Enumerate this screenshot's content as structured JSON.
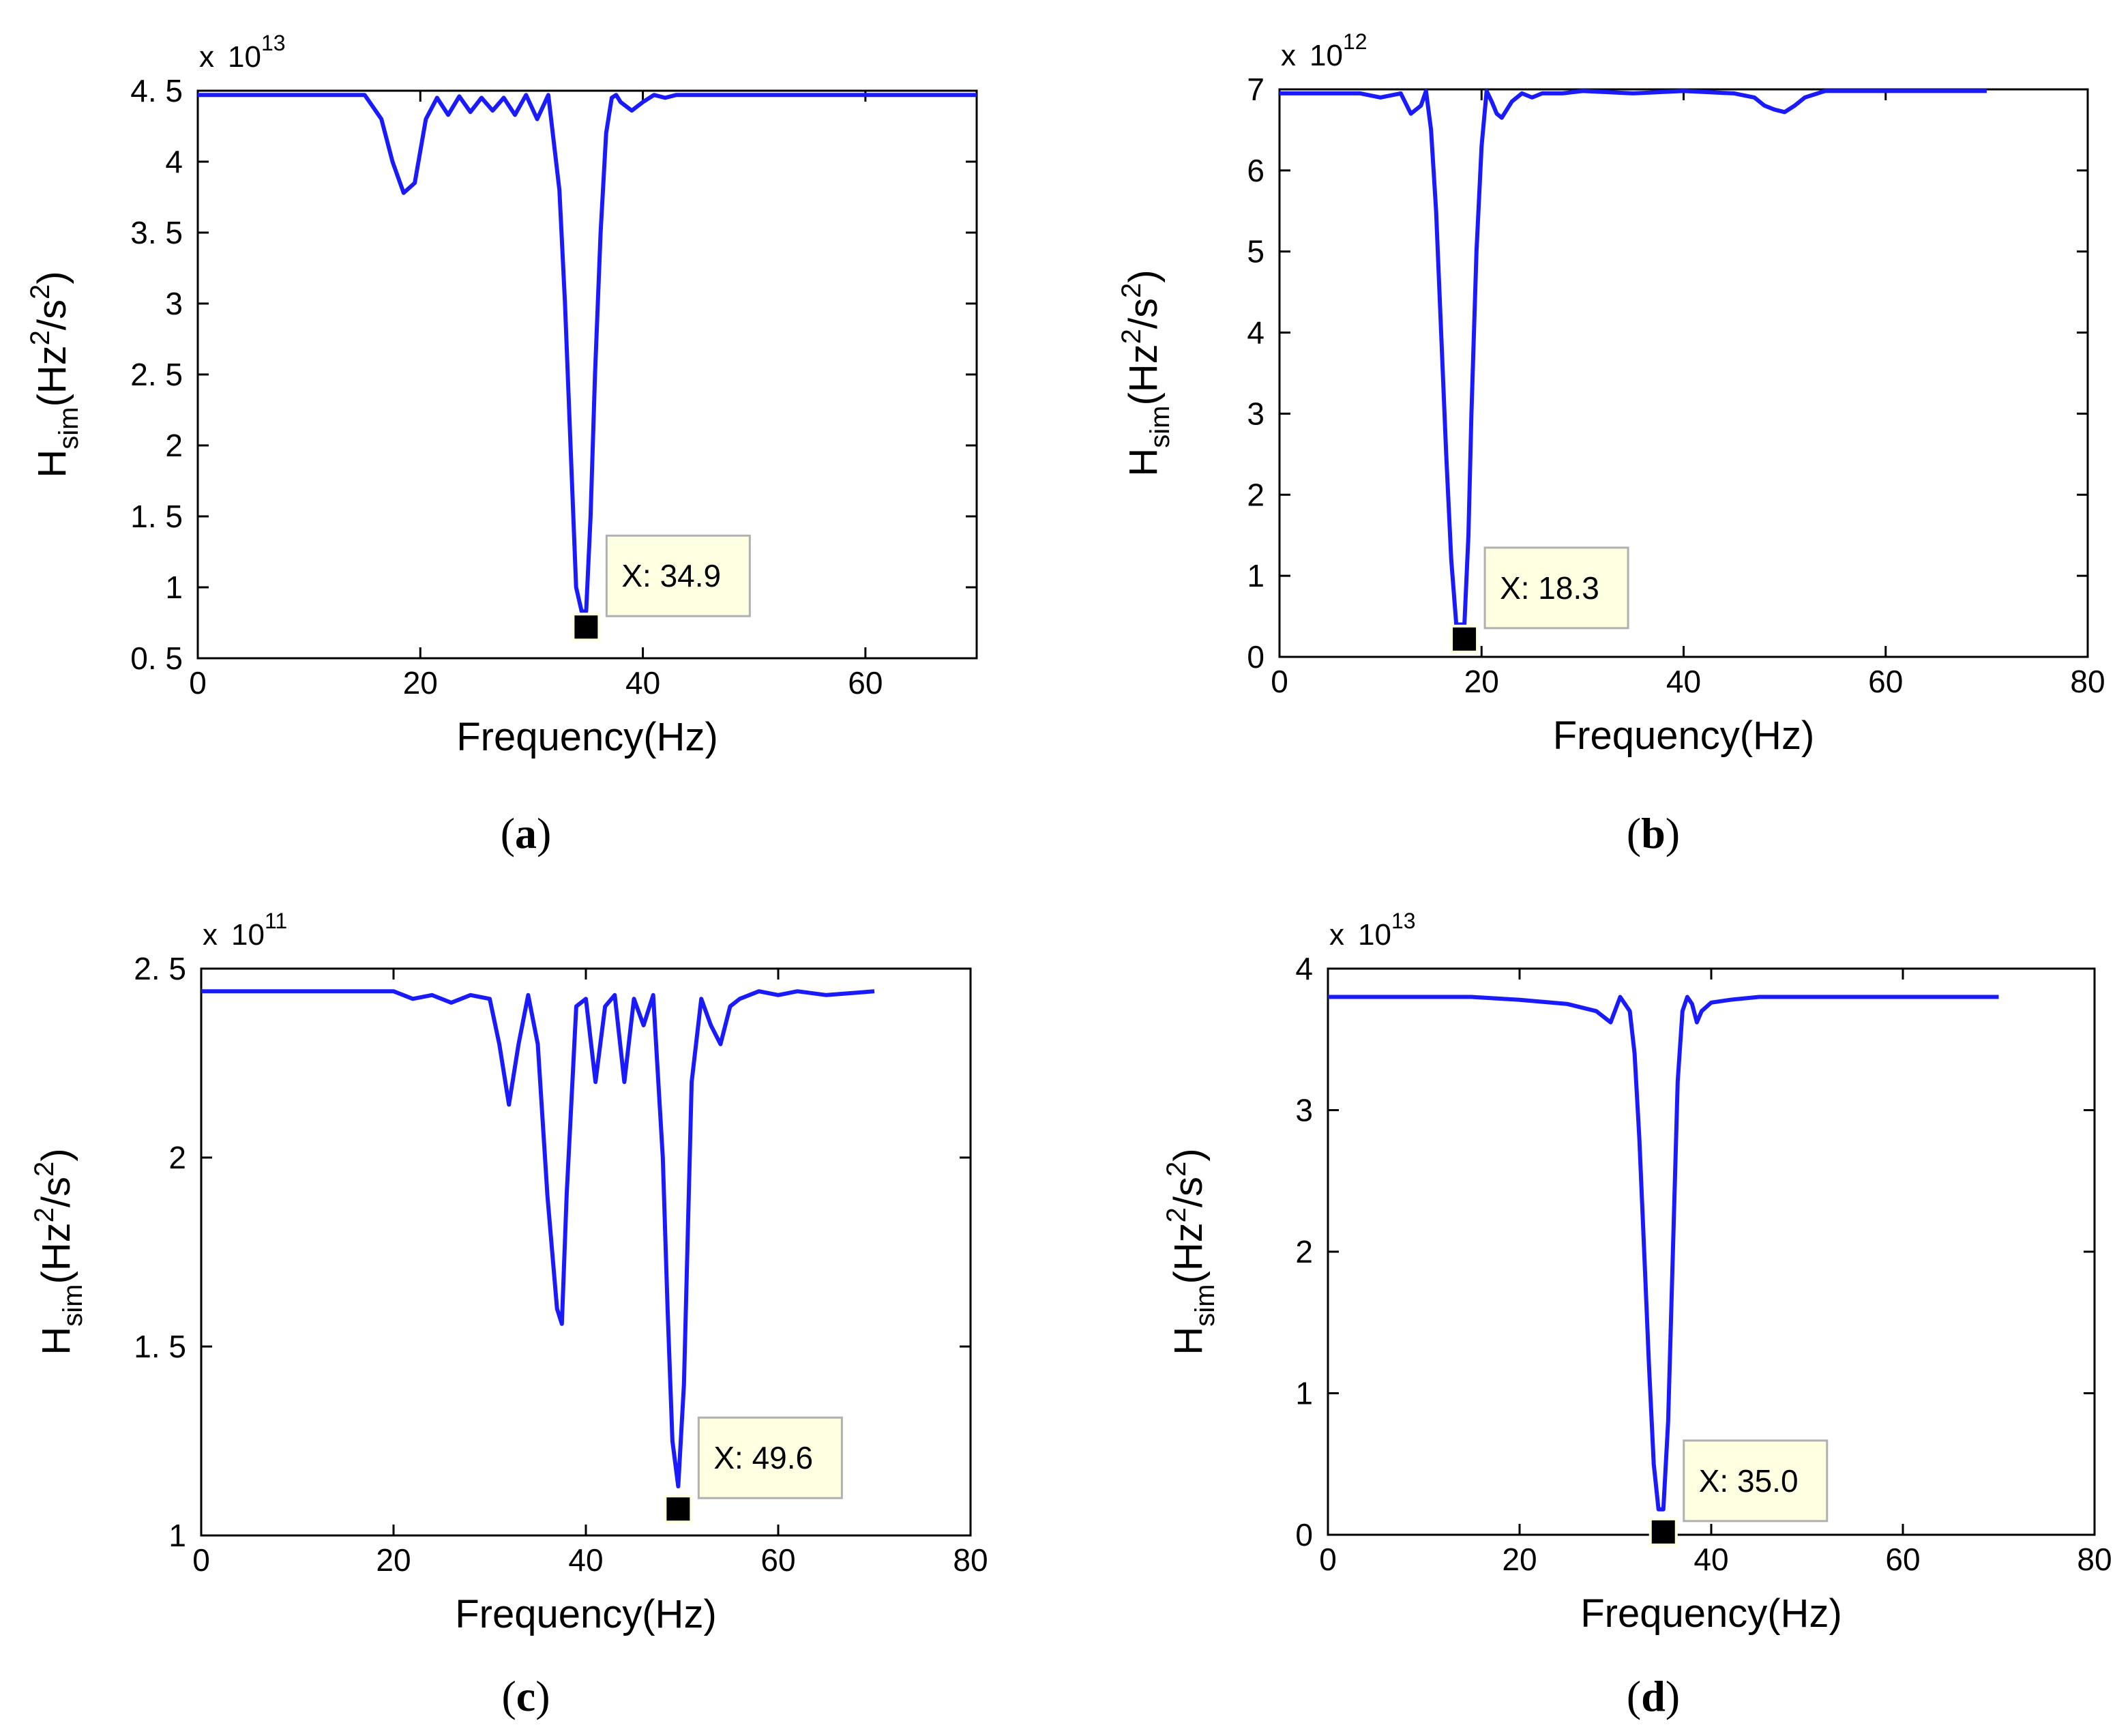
{
  "colors": {
    "line": "#1a1aff",
    "axis": "#000000",
    "marker": "#000000",
    "tooltip_bg": "#ffffe1",
    "tooltip_border": "#b0b0b0"
  },
  "chart_data": [
    {
      "type": "line",
      "panel": "a",
      "caption_letter": "a",
      "caption": [
        "(",
        "a",
        ")"
      ],
      "xlabel": "Frequency(Hz)",
      "ylabel": {
        "main": "H",
        "sub": "sim",
        "unit_open": "(Hz",
        "sup1": "2",
        "unit_mid": "/s",
        "sup2": "2",
        "unit_close": ")"
      },
      "multiplier": {
        "prefix": "x",
        "base": "10",
        "exponent": "13"
      },
      "xlim": [
        0,
        70
      ],
      "ylim": [
        0.5,
        4.5
      ],
      "xticks": [
        0,
        20,
        40,
        60
      ],
      "xtick_labels": [
        "0",
        "20",
        "40",
        "60"
      ],
      "yticks": [
        0.5,
        1,
        1.5,
        2,
        2.5,
        3,
        3.5,
        4,
        4.5
      ],
      "ytick_labels": [
        "0. 5",
        "1",
        "1. 5",
        "2",
        "2. 5",
        "3",
        "3. 5",
        "4",
        "4. 5"
      ],
      "series": [
        {
          "name": "H_sim",
          "x": [
            0,
            15,
            16.5,
            17.5,
            18.5,
            19.5,
            20.5,
            21.5,
            22.5,
            23.5,
            24.5,
            25.5,
            26.5,
            27.5,
            28.5,
            29.5,
            30.5,
            31.5,
            32.5,
            33,
            33.5,
            34,
            34.5,
            34.9,
            35.3,
            35.7,
            36.2,
            36.7,
            37.2,
            37.6,
            38,
            39,
            40,
            41,
            42,
            43,
            45,
            50,
            55,
            60,
            65,
            70
          ],
          "y": [
            4.47,
            4.47,
            4.3,
            4.0,
            3.78,
            3.85,
            4.3,
            4.45,
            4.33,
            4.46,
            4.35,
            4.45,
            4.36,
            4.45,
            4.33,
            4.47,
            4.3,
            4.47,
            3.8,
            3.0,
            2.0,
            1.0,
            0.83,
            0.83,
            1.5,
            2.5,
            3.5,
            4.2,
            4.45,
            4.47,
            4.42,
            4.36,
            4.42,
            4.47,
            4.45,
            4.47,
            4.47,
            4.47,
            4.47,
            4.47,
            4.47,
            4.47
          ]
        }
      ],
      "annotation": {
        "label": "X: 34.9",
        "x": 34.9,
        "y": 0.72
      }
    },
    {
      "type": "line",
      "panel": "b",
      "caption_letter": "b",
      "caption": [
        "(",
        "b",
        ")"
      ],
      "xlabel": "Frequency(Hz)",
      "ylabel": {
        "main": "H",
        "sub": "sim",
        "unit_open": "(Hz",
        "sup1": "2",
        "unit_mid": "/s",
        "sup2": "2",
        "unit_close": ")"
      },
      "multiplier": {
        "prefix": "x",
        "base": "10",
        "exponent": "12"
      },
      "xlim": [
        0,
        80
      ],
      "ylim": [
        0,
        7
      ],
      "xticks": [
        0,
        20,
        40,
        60,
        80
      ],
      "xtick_labels": [
        "0",
        "20",
        "40",
        "60",
        "80"
      ],
      "yticks": [
        0,
        1,
        2,
        3,
        4,
        5,
        6,
        7
      ],
      "ytick_labels": [
        "0",
        "1",
        "2",
        "3",
        "4",
        "5",
        "6",
        "7"
      ],
      "series": [
        {
          "name": "H_sim",
          "x": [
            0,
            8,
            10,
            12,
            13,
            14,
            14.5,
            15,
            15.5,
            16,
            16.5,
            17,
            17.5,
            18,
            18.3,
            18.7,
            19,
            19.5,
            20,
            20.5,
            21,
            21.5,
            22,
            23,
            24,
            25,
            26,
            28,
            30,
            35,
            40,
            45,
            47,
            48,
            49,
            50,
            51,
            52,
            54,
            60,
            65,
            70
          ],
          "y": [
            6.95,
            6.95,
            6.9,
            6.95,
            6.7,
            6.8,
            6.98,
            6.5,
            5.5,
            4.0,
            2.5,
            1.2,
            0.4,
            0.4,
            0.4,
            1.5,
            3.0,
            5.0,
            6.3,
            6.98,
            6.85,
            6.7,
            6.65,
            6.85,
            6.95,
            6.9,
            6.95,
            6.95,
            6.98,
            6.95,
            6.98,
            6.95,
            6.9,
            6.8,
            6.75,
            6.72,
            6.8,
            6.9,
            6.98,
            6.98,
            6.98,
            6.98
          ]
        }
      ],
      "annotation": {
        "label": "X: 18.3",
        "x": 18.3,
        "y": 0.22
      }
    },
    {
      "type": "line",
      "panel": "c",
      "caption_letter": "c",
      "caption": [
        "(",
        "c",
        ")"
      ],
      "xlabel": "Frequency(Hz)",
      "ylabel": {
        "main": "H",
        "sub": "sim",
        "unit_open": "(Hz",
        "sup1": "2",
        "unit_mid": "/s",
        "sup2": "2",
        "unit_close": ")"
      },
      "multiplier": {
        "prefix": "x",
        "base": "10",
        "exponent": "11"
      },
      "xlim": [
        0,
        80
      ],
      "ylim": [
        1,
        2.5
      ],
      "xticks": [
        0,
        20,
        40,
        60,
        80
      ],
      "xtick_labels": [
        "0",
        "20",
        "40",
        "60",
        "80"
      ],
      "yticks": [
        1,
        1.5,
        2,
        2.5
      ],
      "ytick_labels": [
        "1",
        "1. 5",
        "2",
        "2. 5"
      ],
      "series": [
        {
          "name": "H_sim",
          "x": [
            0,
            20,
            22,
            24,
            26,
            28,
            30,
            31,
            32,
            33,
            34,
            35,
            36,
            37,
            37.5,
            38,
            39,
            40,
            41,
            42,
            43,
            44,
            45,
            46,
            47,
            48,
            48.5,
            49,
            49.6,
            50.2,
            51,
            52,
            53,
            54,
            55,
            56,
            58,
            60,
            62,
            65,
            70
          ],
          "y": [
            2.44,
            2.44,
            2.42,
            2.43,
            2.41,
            2.43,
            2.42,
            2.3,
            2.14,
            2.3,
            2.43,
            2.3,
            1.9,
            1.6,
            1.56,
            1.9,
            2.4,
            2.42,
            2.2,
            2.4,
            2.43,
            2.2,
            2.42,
            2.35,
            2.43,
            2.0,
            1.6,
            1.25,
            1.13,
            1.4,
            2.2,
            2.42,
            2.35,
            2.3,
            2.4,
            2.42,
            2.44,
            2.43,
            2.44,
            2.43,
            2.44
          ]
        }
      ],
      "annotation": {
        "label": "X: 49.6",
        "x": 49.6,
        "y": 1.07
      }
    },
    {
      "type": "line",
      "panel": "d",
      "caption_letter": "d",
      "caption": [
        "(",
        "d",
        ")"
      ],
      "xlabel": "Frequency(Hz)",
      "ylabel": {
        "main": "H",
        "sub": "sim",
        "unit_open": "(Hz",
        "sup1": "2",
        "unit_mid": "/s",
        "sup2": "2",
        "unit_close": ")"
      },
      "multiplier": {
        "prefix": "x",
        "base": "10",
        "exponent": "13"
      },
      "xlim": [
        0,
        80
      ],
      "ylim": [
        0,
        4
      ],
      "xticks": [
        0,
        20,
        40,
        60,
        80
      ],
      "xtick_labels": [
        "0",
        "20",
        "40",
        "60",
        "80"
      ],
      "yticks": [
        0,
        1,
        2,
        3,
        4
      ],
      "ytick_labels": [
        "0",
        "1",
        "2",
        "3",
        "4"
      ],
      "series": [
        {
          "name": "H_sim",
          "x": [
            0,
            15,
            20,
            25,
            28,
            29.5,
            30.5,
            31.5,
            32,
            32.5,
            33,
            33.5,
            34,
            34.5,
            35,
            35.5,
            36,
            36.5,
            37,
            37.5,
            38,
            38.5,
            39,
            40,
            42,
            45,
            50,
            55,
            60,
            65,
            70
          ],
          "y": [
            3.8,
            3.8,
            3.78,
            3.75,
            3.7,
            3.62,
            3.8,
            3.7,
            3.4,
            2.8,
            2.0,
            1.2,
            0.5,
            0.18,
            0.18,
            0.8,
            2.0,
            3.2,
            3.7,
            3.8,
            3.75,
            3.62,
            3.7,
            3.76,
            3.78,
            3.8,
            3.8,
            3.8,
            3.8,
            3.8,
            3.8
          ]
        }
      ],
      "annotation": {
        "label": "X: 35.0",
        "x": 35.0,
        "y": 0.02
      }
    }
  ]
}
